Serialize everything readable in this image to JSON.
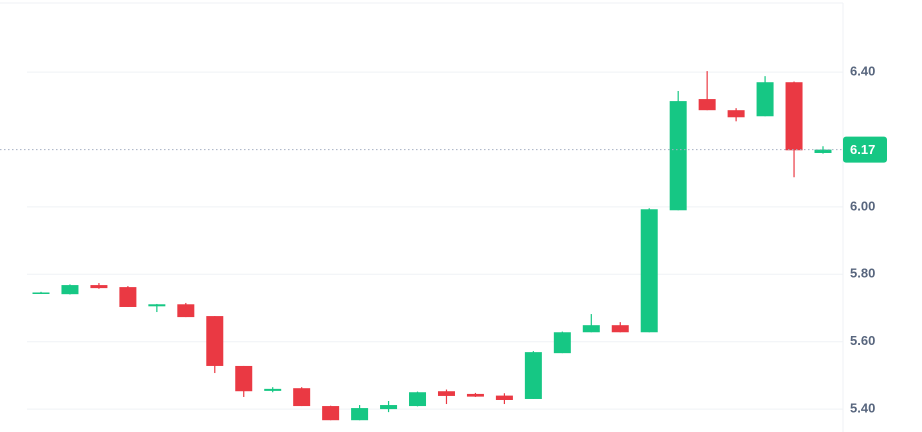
{
  "chart_data": {
    "type": "candlestick",
    "open": [
      5.744,
      5.741,
      5.768,
      5.762,
      5.705,
      5.711,
      5.676,
      5.528,
      5.454,
      5.462,
      5.409,
      5.367,
      5.4,
      5.409,
      5.453,
      5.445,
      5.44,
      5.43,
      5.566,
      5.628,
      5.649,
      5.628,
      5.99,
      6.32,
      6.287,
      6.269,
      6.37,
      6.16
    ],
    "high": [
      5.748,
      5.77,
      5.774,
      5.765,
      5.712,
      5.715,
      5.676,
      5.528,
      5.465,
      5.465,
      5.41,
      5.412,
      5.424,
      5.452,
      5.458,
      5.448,
      5.447,
      5.572,
      5.63,
      5.682,
      5.658,
      5.996,
      6.344,
      6.403,
      6.293,
      6.388,
      6.372,
      6.18
    ],
    "low": [
      5.742,
      5.74,
      5.757,
      5.703,
      5.688,
      5.673,
      5.507,
      5.436,
      5.45,
      5.409,
      5.367,
      5.367,
      5.391,
      5.408,
      5.415,
      5.436,
      5.415,
      5.43,
      5.566,
      5.628,
      5.628,
      5.628,
      5.99,
      6.287,
      6.254,
      6.269,
      6.088,
      6.158
    ],
    "close": [
      5.746,
      5.768,
      5.759,
      5.703,
      5.711,
      5.673,
      5.528,
      5.453,
      5.46,
      5.409,
      5.367,
      5.403,
      5.412,
      5.45,
      5.439,
      5.437,
      5.427,
      5.569,
      5.628,
      5.649,
      5.628,
      5.993,
      6.314,
      6.287,
      6.266,
      6.37,
      6.168,
      6.17
    ],
    "up_color": "#16c784",
    "down_color": "#ea3943",
    "ylim": [
      5.332,
      6.614
    ],
    "yticks": [
      {
        "value": 5.4,
        "label": "5.40"
      },
      {
        "value": 5.6,
        "label": "5.60"
      },
      {
        "value": 5.8,
        "label": "5.80"
      },
      {
        "value": 6.0,
        "label": "6.00"
      },
      {
        "value": 6.4,
        "label": "6.40"
      }
    ],
    "grid": true,
    "last_price": 6.17
  }
}
